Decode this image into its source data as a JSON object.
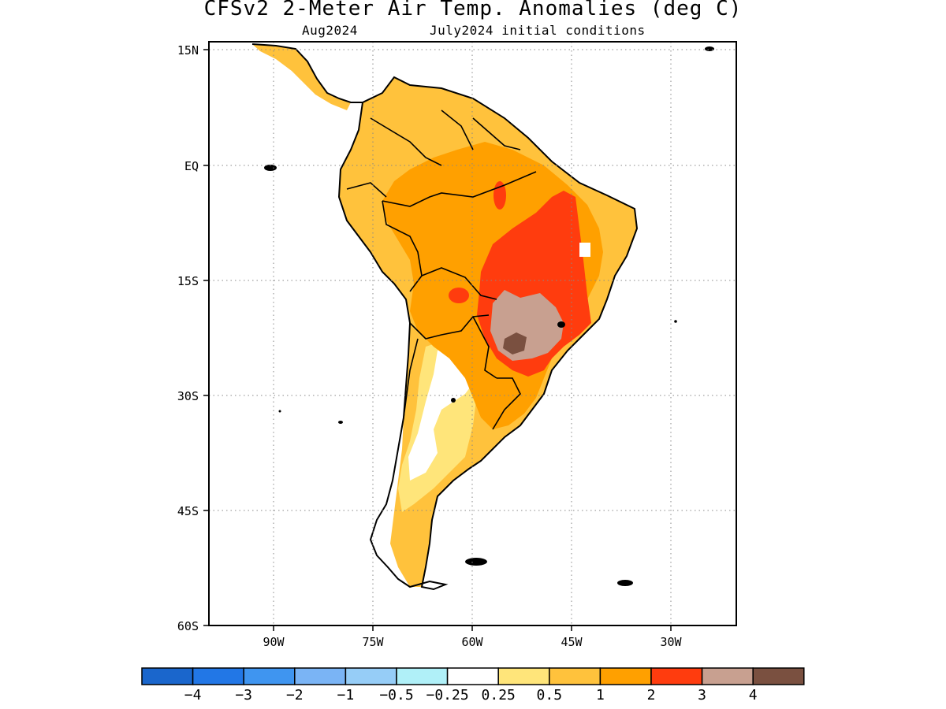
{
  "header": {
    "title": "CFSv2 2-Meter Air Temp. Anomalies (deg C)",
    "valid_month": "Aug2024",
    "initial_conditions": "July2024 initial conditions"
  },
  "map": {
    "lat_ticks": [
      "15N",
      "EQ",
      "15S",
      "30S",
      "45S",
      "60S"
    ],
    "lon_ticks": [
      "90W",
      "75W",
      "60W",
      "45W",
      "30W"
    ]
  },
  "colorbar": {
    "colors": [
      "#1a66cc",
      "#2277e6",
      "#3f95f0",
      "#7ab4f5",
      "#96cdf7",
      "#b0f0f8",
      "#ffffff",
      "#ffe57a",
      "#ffc23c",
      "#ffa000",
      "#ff3c0e",
      "#c8a090",
      "#7a5040"
    ],
    "labels": [
      "−4",
      "−3",
      "−2",
      "−1",
      "−0.5",
      "−0.25",
      "0.25",
      "0.5",
      "1",
      "2",
      "3",
      "4"
    ]
  }
}
